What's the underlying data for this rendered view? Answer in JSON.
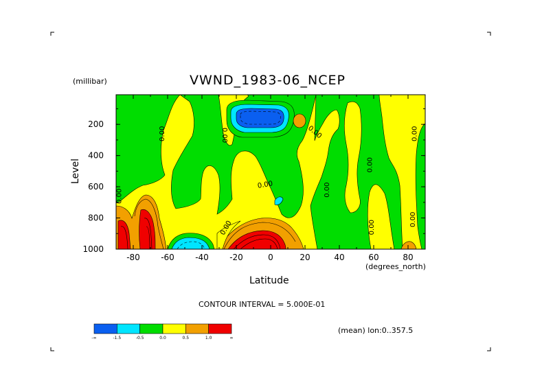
{
  "chart_data": {
    "type": "heatmap",
    "title": "VWND_1983-06_NCEP",
    "xlabel": "Latitude",
    "x_units": "(degrees_north)",
    "ylabel": "Level",
    "y_units": "(millibar)",
    "x_ticks": [
      "-80",
      "-60",
      "-40",
      "-20",
      "0",
      "20",
      "40",
      "60",
      "80"
    ],
    "x_tick_values": [
      -80,
      -60,
      -40,
      -20,
      0,
      20,
      40,
      60,
      80
    ],
    "y_ticks": [
      "200",
      "400",
      "600",
      "800",
      "1000"
    ],
    "y_tick_values": [
      200,
      400,
      600,
      800,
      1000
    ],
    "xlim": [
      -90,
      90
    ],
    "ylim": [
      1000,
      10
    ],
    "contour_interval_text": "CONTOUR INTERVAL = 5.000E-01",
    "mean_text": "(mean) lon:0..357.5",
    "contour_label": "0.00",
    "colorbar": {
      "levels": [
        "-∞",
        "-1.5",
        "-0.5",
        "0.0",
        "0.5",
        "1.0",
        "∞"
      ],
      "colors": [
        "#0a5ff0",
        "#00e5ff",
        "#00dd00",
        "#ffff00",
        "#f2a000",
        "#f00000"
      ]
    },
    "regions": [
      {
        "name": "green-band-south",
        "lat": [
          -90,
          -62
        ],
        "level": [
          10,
          720
        ],
        "approx_value": -0.2
      },
      {
        "name": "yellow-south-column",
        "lat": [
          -60,
          -22
        ],
        "level": [
          10,
          900
        ],
        "approx_value": 0.3
      },
      {
        "name": "green-mid-lat-column",
        "lat": [
          -34,
          10
        ],
        "level": [
          10,
          600
        ],
        "approx_value": -0.2
      },
      {
        "name": "jet-minimum",
        "lat": [
          -20,
          10
        ],
        "level": [
          100,
          250
        ],
        "approx_value": -1.6
      },
      {
        "name": "surface-max-south",
        "lat": [
          -90,
          -65
        ],
        "level": [
          700,
          1000
        ],
        "approx_value": 2.0
      },
      {
        "name": "surface-max-equator",
        "lat": [
          -25,
          20
        ],
        "level": [
          800,
          1000
        ],
        "approx_value": 1.8
      },
      {
        "name": "cyan-pocket-south",
        "lat": [
          -60,
          -42
        ],
        "level": [
          890,
          1000
        ],
        "approx_value": -0.7
      },
      {
        "name": "green-column-north",
        "lat": [
          12,
          90
        ],
        "level": [
          10,
          1000
        ],
        "approx_value": -0.2
      }
    ]
  },
  "frame": {
    "title": "VWND_1983-06_NCEP",
    "y_units": "(millibar)",
    "x_units": "(degrees_north)",
    "xlabel": "Latitude",
    "ylabel": "Level",
    "contour_interval": "CONTOUR INTERVAL = 5.000E-01",
    "mean": "(mean) lon:0..357.5"
  }
}
